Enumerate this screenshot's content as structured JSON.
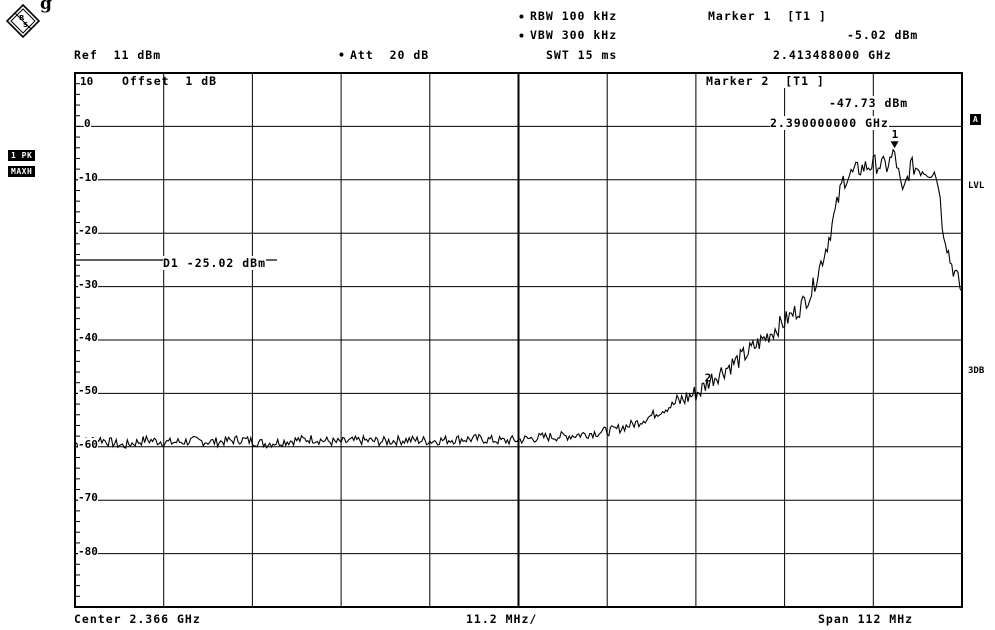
{
  "header": {
    "fragment": "g",
    "rbw": "RBW 100 kHz",
    "vbw": "VBW 300 kHz",
    "swt": "SWT 15 ms",
    "ref": "Ref  11 dBm",
    "att": "Att  20 dB",
    "marker1_title": "Marker 1  [T1 ]",
    "marker1_level": "-5.02 dBm",
    "marker1_freq": "2.413488000 GHz",
    "marker2_title": "Marker 2  [T1 ]",
    "marker2_level": "-47.73 dBm",
    "marker2_freq": "2.390000000 GHz",
    "offset": "Offset  1 dB"
  },
  "side": {
    "trace1": "1 PK",
    "trace2": "MAXH",
    "right_a": "A",
    "right_lvl": "LVL",
    "right_3db": "3DB"
  },
  "footer": {
    "center": "Center 2.366 GHz",
    "div": "11.2 MHz/",
    "span": "Span 112 MHz"
  },
  "display_line": "D1 -25.02 dBm",
  "chart_data": {
    "type": "line",
    "xlabel": "",
    "ylabel": "",
    "xlim": [
      2.31,
      2.422
    ],
    "ylim": [
      -90,
      10
    ],
    "x_unit": "GHz",
    "y_unit": "dBm",
    "yticks": [
      "10",
      "0",
      "-10",
      "-20",
      "-30",
      "-40",
      "-50",
      "-60",
      "-70",
      "-80"
    ],
    "grid": true,
    "display_line": {
      "label": "D1 -25.02 dBm",
      "value": -25.02,
      "x_end": 2.3355
    },
    "markers": [
      {
        "id": "1",
        "x": 2.413488,
        "y": -5.02
      },
      {
        "id": "2",
        "x": 2.39,
        "y": -47.73
      }
    ],
    "series": [
      {
        "x": [
          2.31,
          2.313,
          2.316,
          2.319,
          2.322,
          2.325,
          2.328,
          2.331,
          2.334,
          2.337,
          2.34,
          2.343,
          2.346,
          2.349,
          2.352,
          2.355,
          2.358,
          2.361,
          2.364,
          2.366,
          2.369,
          2.372,
          2.375,
          2.378,
          2.381,
          2.383,
          2.385,
          2.387,
          2.389,
          2.39,
          2.392,
          2.394,
          2.396,
          2.398,
          2.4,
          2.4015,
          2.403,
          2.405,
          2.407,
          2.409,
          2.411,
          2.4125,
          2.4135,
          2.414,
          2.4145,
          2.4155,
          2.417,
          2.4185,
          2.419,
          2.4195,
          2.4205,
          2.4215,
          2.422
        ],
        "y": [
          -59.5,
          -58.5,
          -59.8,
          -58.7,
          -59.2,
          -58.9,
          -59.1,
          -58.6,
          -59.4,
          -58.9,
          -58.5,
          -59.2,
          -58.8,
          -59.0,
          -58.7,
          -58.9,
          -58.6,
          -58.5,
          -58.9,
          -58.7,
          -58.2,
          -58.0,
          -57.5,
          -56.9,
          -55.5,
          -54.0,
          -52.5,
          -51.0,
          -49.5,
          -47.7,
          -45.5,
          -43.5,
          -41.0,
          -38.5,
          -36.0,
          -34.0,
          -31.0,
          -22.0,
          -10.0,
          -8.0,
          -7.0,
          -7.5,
          -5.0,
          -9.0,
          -13.0,
          -7.5,
          -8.0,
          -8.5,
          -10.0,
          -18.0,
          -25.0,
          -29.0,
          -31.0
        ]
      }
    ]
  }
}
